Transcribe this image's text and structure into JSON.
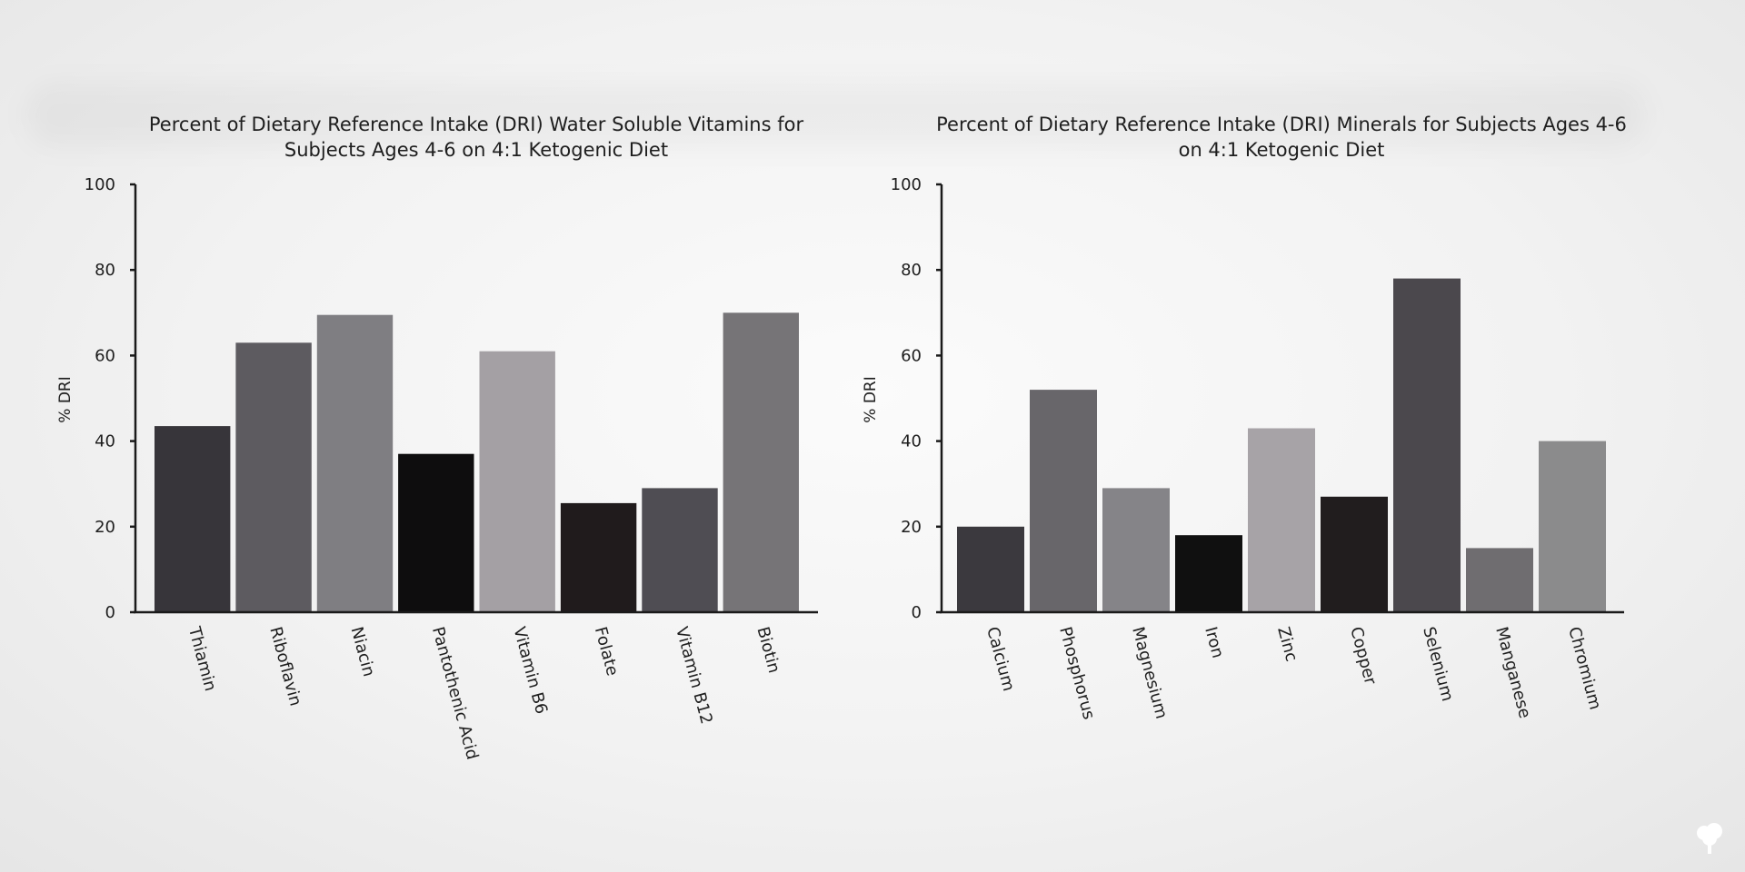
{
  "chart_data": [
    {
      "type": "bar",
      "title": [
        "Percent of Dietary Reference Intake (DRI) Water Soluble Vitamins for",
        "Subjects Ages 4-6 on 4:1 Ketogenic Diet"
      ],
      "ylabel": "% DRI",
      "xlabel": "",
      "ylim": [
        0,
        100
      ],
      "yticks": [
        0,
        20,
        40,
        60,
        80,
        100
      ],
      "categories": [
        "Thiamin",
        "Riboflavin",
        "Niacin",
        "Pantothenic Acid",
        "Vitamin B6",
        "Folate",
        "Vitamin B12",
        "Biotin"
      ],
      "values": [
        43.5,
        63,
        69.5,
        37,
        61,
        25.5,
        29,
        70
      ],
      "colors": [
        "#37353a",
        "#5d5b60",
        "#7f7e82",
        "#0e0d0e",
        "#a4a0a4",
        "#201b1c",
        "#4f4d53",
        "#767477"
      ],
      "grid": false,
      "legend": "none"
    },
    {
      "type": "bar",
      "title": [
        "Percent of Dietary Reference Intake (DRI) Minerals for Subjects Ages 4-6",
        "on 4:1 Ketogenic Diet"
      ],
      "ylabel": "% DRI",
      "xlabel": "",
      "ylim": [
        0,
        100
      ],
      "yticks": [
        0,
        20,
        40,
        60,
        80,
        100
      ],
      "categories": [
        "Calcium",
        "Phosphorus",
        "Magnesium",
        "Iron",
        "Zinc",
        "Copper",
        "Selenium",
        "Manganese",
        "Chromium"
      ],
      "values": [
        20,
        52,
        29,
        18,
        43,
        27,
        78,
        15,
        40
      ],
      "colors": [
        "#3b393e",
        "#68666a",
        "#858488",
        "#101010",
        "#a7a3a7",
        "#211d1e",
        "#4b484d",
        "#6f6d70",
        "#8b8b8c"
      ],
      "grid": false,
      "legend": "none"
    }
  ],
  "logo": {
    "icon": "tree-icon",
    "color": "#ffffff"
  }
}
